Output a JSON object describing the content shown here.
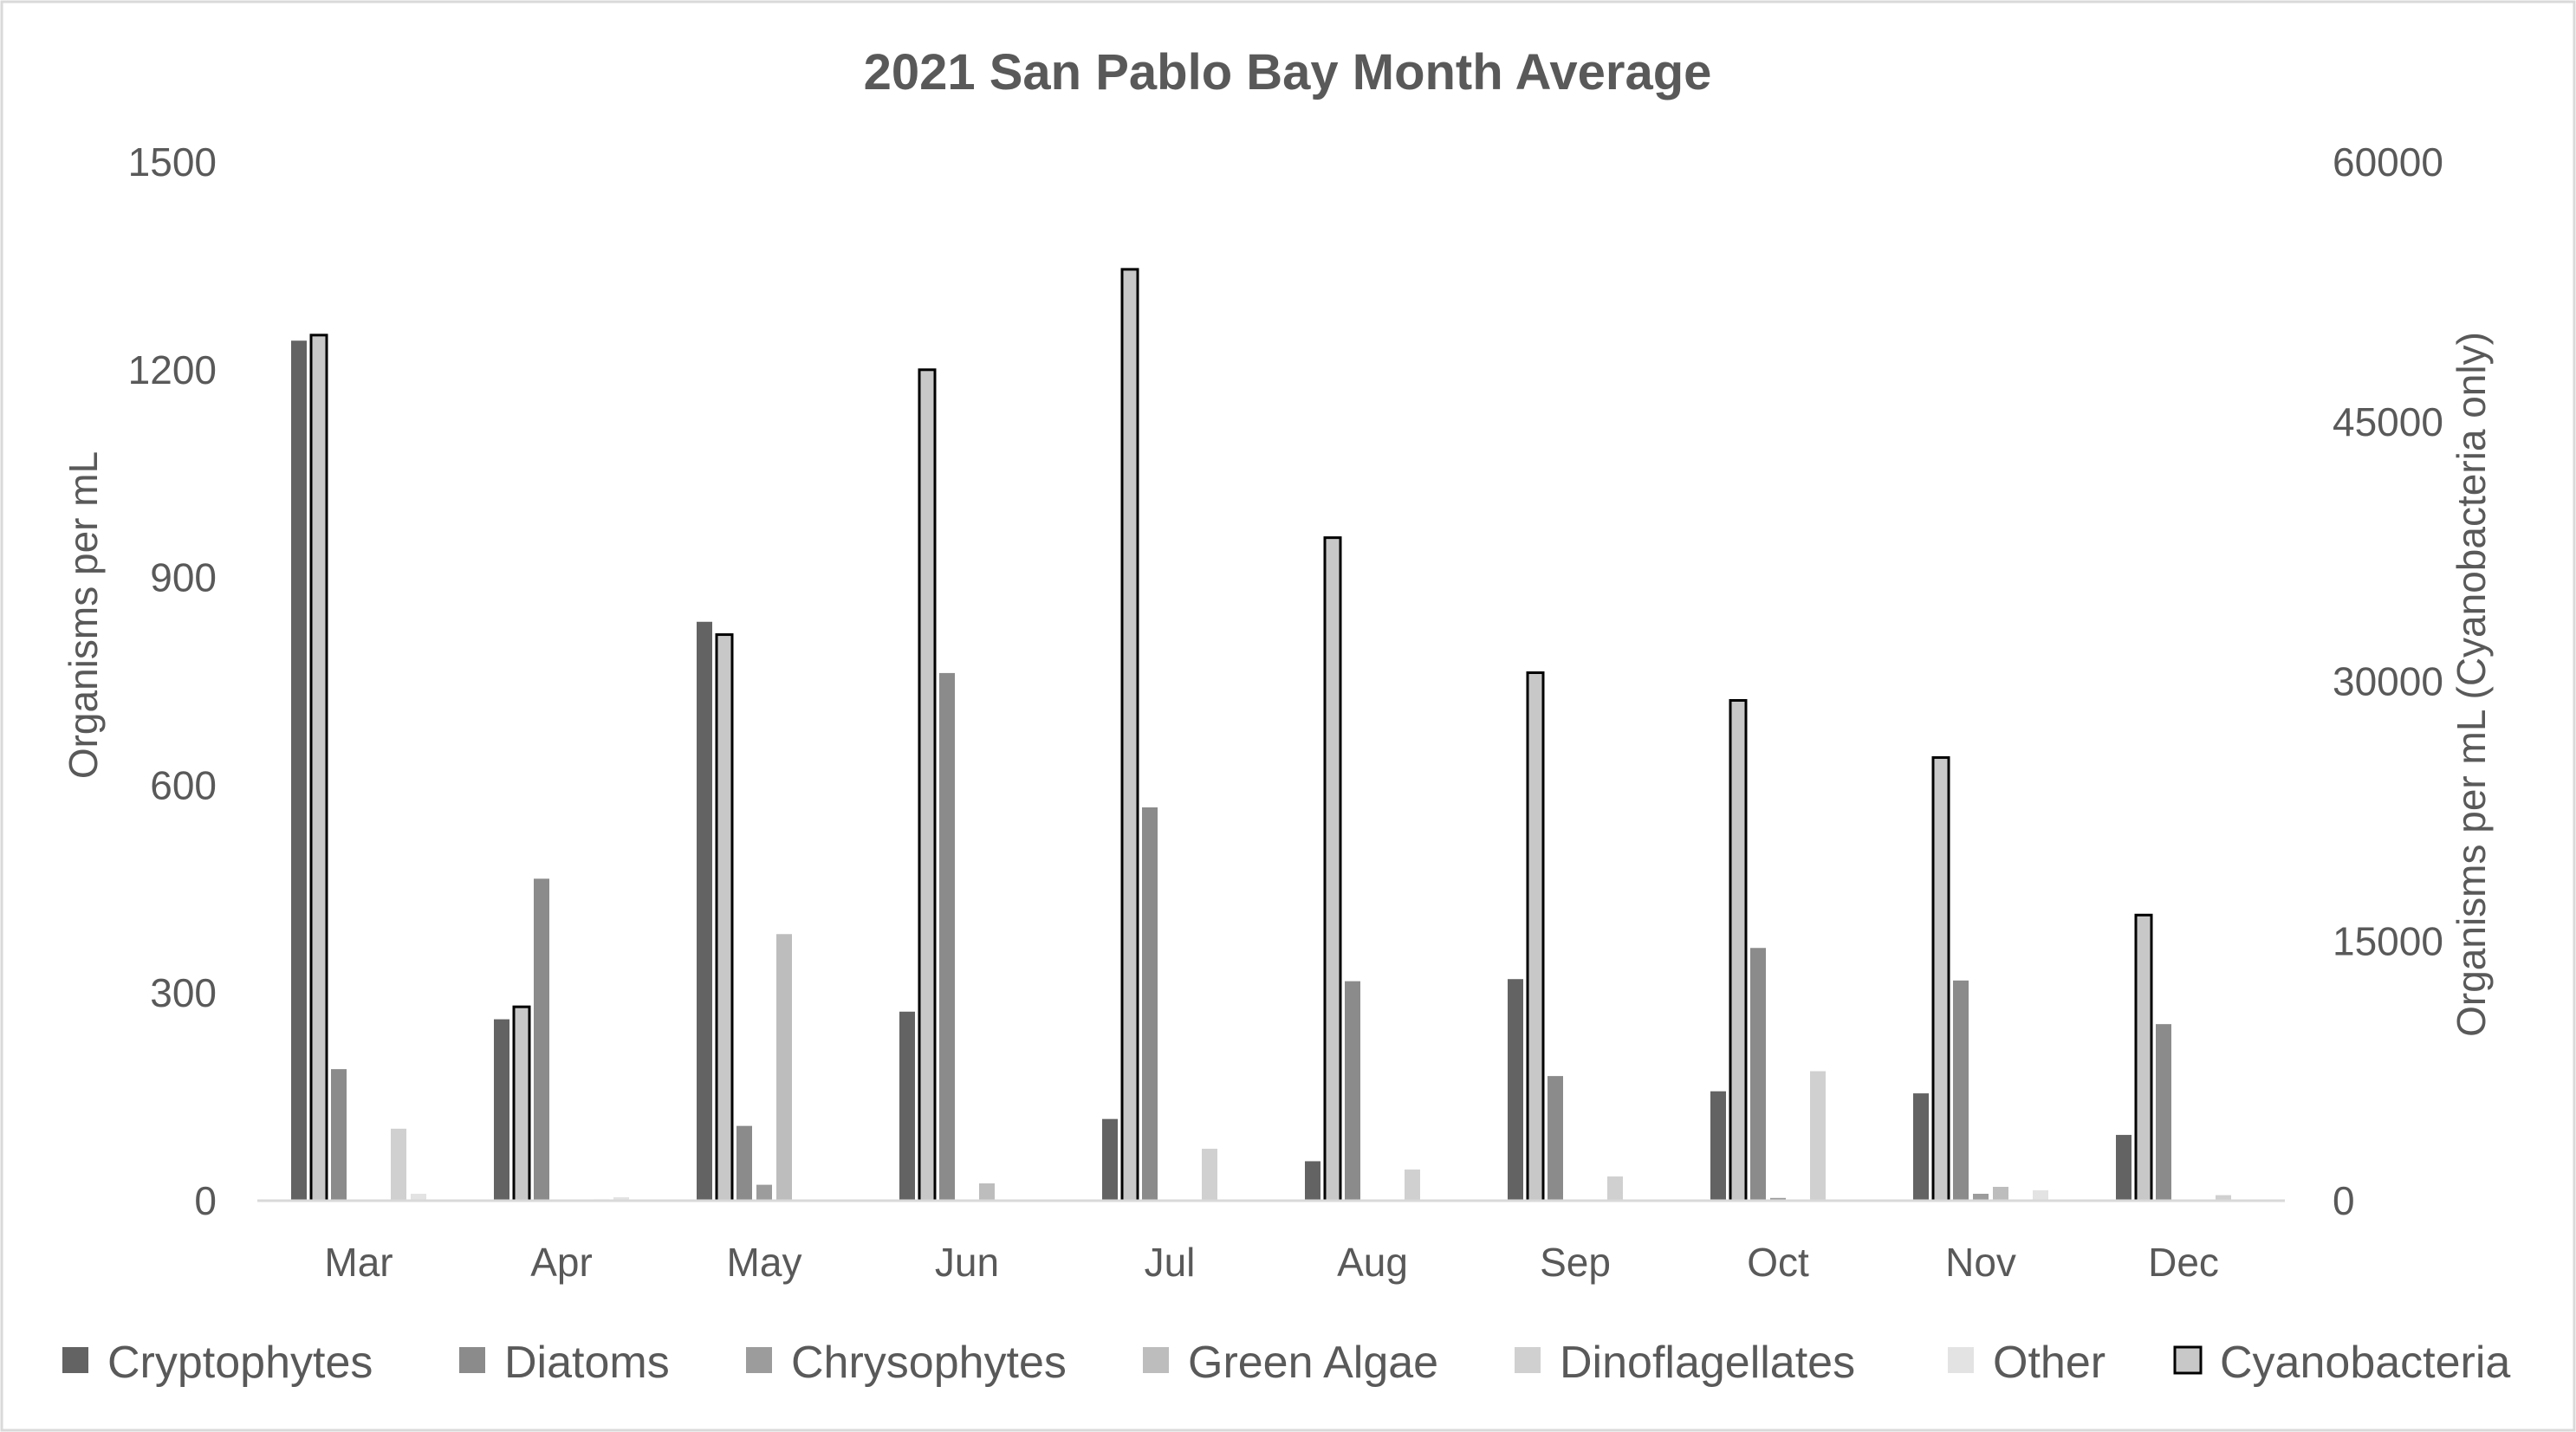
{
  "chart_data": {
    "type": "bar",
    "title": "2021 San Pablo Bay Month Average",
    "ylabel": "Organisms per mL",
    "y2label": "Organisms per mL (Cyanobacteria only)",
    "xlabel": "",
    "ylim": [
      0,
      1500
    ],
    "y2lim": [
      0,
      60000
    ],
    "yticks": [
      "0",
      "300",
      "600",
      "900",
      "1200",
      "1500"
    ],
    "y2ticks": [
      "0",
      "15000",
      "30000",
      "45000",
      "60000"
    ],
    "grid": false,
    "legend_position": "bottom",
    "categories": [
      "Mar",
      "Apr",
      "May",
      "Jun",
      "Jul",
      "Aug",
      "Sep",
      "Oct",
      "Nov",
      "Dec"
    ],
    "series": [
      {
        "name": "Cryptophytes",
        "axis": "left",
        "color": "#636363",
        "values": [
          1242,
          262,
          836,
          273,
          118,
          57,
          320,
          158,
          155,
          95
        ]
      },
      {
        "name": "Cyanobacteria",
        "axis": "right",
        "color": "#c8c8c8",
        "outline": "#000000",
        "values": [
          50000,
          11200,
          32700,
          48000,
          53800,
          38300,
          30500,
          28900,
          25600,
          16500
        ]
      },
      {
        "name": "Diatoms",
        "axis": "left",
        "color": "#8b8b8b",
        "values": [
          190,
          465,
          108,
          762,
          568,
          317,
          180,
          365,
          318,
          255
        ]
      },
      {
        "name": "Chrysophytes",
        "axis": "left",
        "color": "#9c9c9c",
        "values": [
          0,
          0,
          23,
          0,
          0,
          0,
          0,
          4,
          10,
          0
        ]
      },
      {
        "name": "Green Algae",
        "axis": "left",
        "color": "#bdbdbd",
        "values": [
          0,
          0,
          385,
          25,
          0,
          0,
          0,
          0,
          20,
          0
        ]
      },
      {
        "name": "Dinoflagellates",
        "axis": "left",
        "color": "#d0d0d0",
        "values": [
          104,
          2,
          0,
          0,
          75,
          45,
          35,
          187,
          0,
          8
        ]
      },
      {
        "name": "Other",
        "axis": "left",
        "color": "#e3e3e3",
        "values": [
          10,
          5,
          0,
          0,
          0,
          0,
          0,
          0,
          15,
          0
        ]
      }
    ],
    "legend": [
      {
        "name": "Cryptophytes",
        "color": "#636363"
      },
      {
        "name": "Diatoms",
        "color": "#8b8b8b"
      },
      {
        "name": "Chrysophytes",
        "color": "#9c9c9c"
      },
      {
        "name": "Green Algae",
        "color": "#bdbdbd"
      },
      {
        "name": "Dinoflagellates",
        "color": "#d0d0d0"
      },
      {
        "name": "Other",
        "color": "#e3e3e3"
      },
      {
        "name": "Cyanobacteria",
        "color": "#c8c8c8",
        "outline": "#000000"
      }
    ]
  }
}
